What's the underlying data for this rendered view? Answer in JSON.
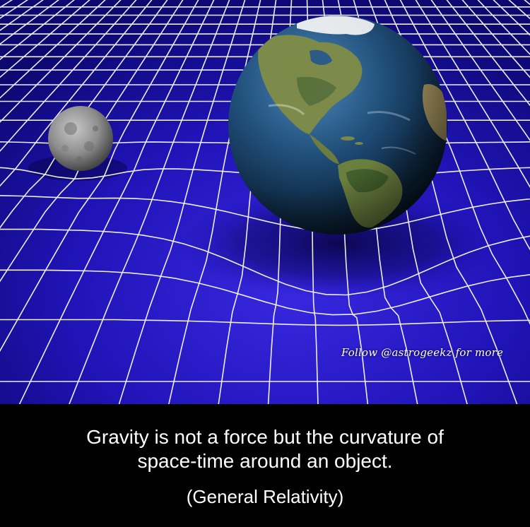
{
  "image": {
    "description_icons": [
      "moon-icon",
      "earth-icon",
      "spacetime-grid"
    ],
    "colors": {
      "grid_background": "#1a10b0",
      "grid_lines": "#ffffff",
      "ocean": "#1d4a73",
      "land": "#7a8a45",
      "caption_background": "#000000",
      "caption_text": "#ffffff"
    }
  },
  "watermark": {
    "text": "Follow @astrogeekz for more"
  },
  "caption": {
    "line1": "Gravity is not a force but the curvature of",
    "line2": "space-time around an object.",
    "subtitle": "(General Relativity)"
  }
}
